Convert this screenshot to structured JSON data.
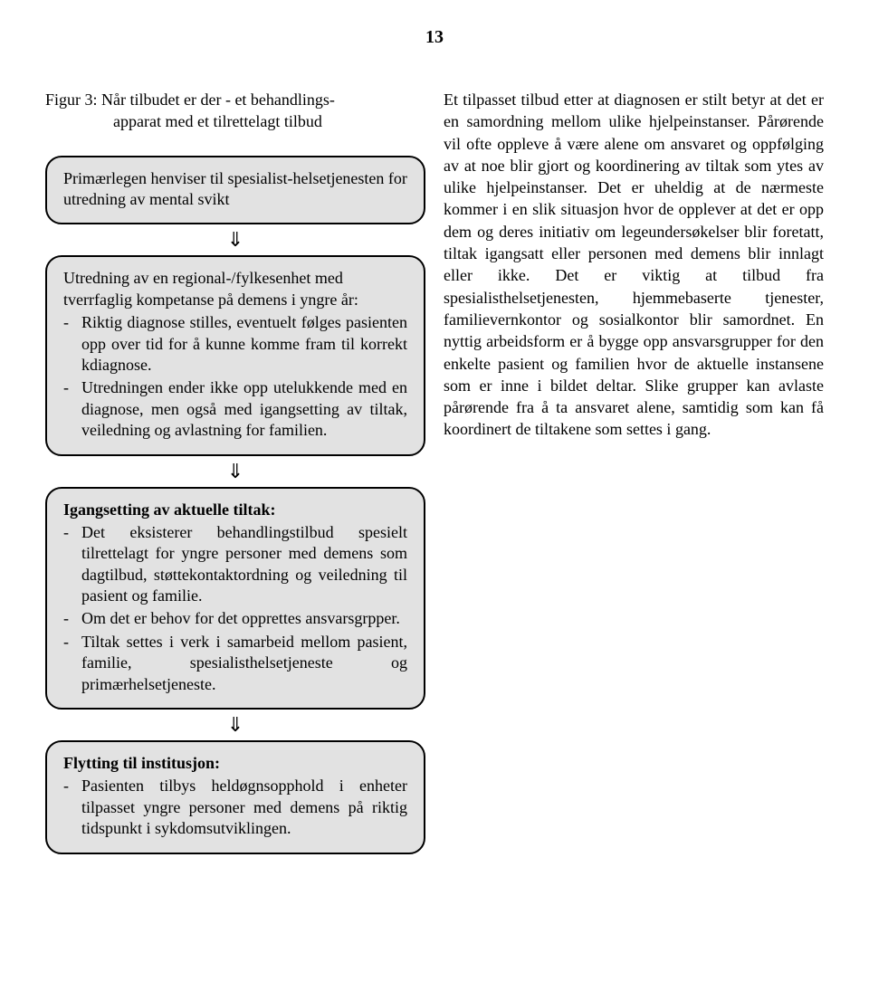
{
  "page_number": "13",
  "figure_title_line1": "Figur 3: Når tilbudet er der - et behandlings-",
  "figure_title_line2": "apparat med et tilrettelagt tilbud",
  "box1": {
    "text": "Primærlegen henviser til spesialist-helsetjenesten for utredning av mental svikt"
  },
  "box2": {
    "intro": "Utredning av en regional-/fylkesenhet med tverrfaglig kompetanse på demens i yngre år:",
    "items": [
      "Riktig diagnose stilles, eventuelt følges pasienten opp over tid for å kunne komme fram til korrekt kdiagnose.",
      "Utredningen ender ikke opp utelukkende med en diagnose, men også med igangsetting av tiltak, veiledning og avlastning for familien."
    ]
  },
  "box3": {
    "heading": "Igangsetting av aktuelle tiltak:",
    "items": [
      "Det eksisterer behandlingstilbud spesielt tilrettelagt for yngre personer med demens som dagtilbud, støttekontaktordning og veiledning til pasient og familie.",
      "Om det er behov for det opprettes ansvarsgrpper.",
      "Tiltak settes i verk i samarbeid mellom pasient, familie, spesialisthelsetjeneste og primærhelsetjeneste."
    ]
  },
  "box4": {
    "heading": "Flytting til institusjon:",
    "items": [
      "Pasienten tilbys heldøgnsopphold i enheter tilpasset yngre personer med demens på riktig tidspunkt i sykdomsutviklingen."
    ]
  },
  "arrow": "⇓",
  "right_text": "Et tilpasset tilbud etter at diagnosen er stilt betyr at det er en samordning mellom ulike hjelpeinstanser. Pårørende vil ofte oppleve å være alene om ansvaret og oppfølging av at noe blir gjort og koordinering av tiltak som ytes av ulike hjelpeinstanser. Det er uheldig at de nærmeste kommer i en slik situasjon hvor de opplever at det er opp dem og deres initiativ om legeundersøkelser blir foretatt, tiltak igangsatt eller personen med demens blir innlagt eller ikke. Det er viktig at tilbud fra spesialisthelsetjenesten, hjemmebaserte tjenester, familievernkontor og sosialkontor blir samordnet. En nyttig arbeidsform er å bygge opp ansvarsgrupper for den enkelte pasient og familien hvor de aktuelle instansene som er inne i bildet deltar. Slike grupper kan avlaste pårørende fra å ta ansvaret alene, samtidig som kan få koordinert de tiltakene som settes i gang."
}
